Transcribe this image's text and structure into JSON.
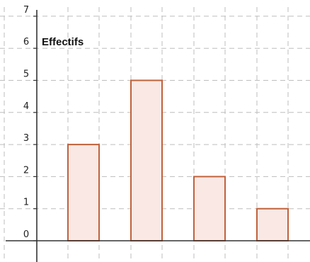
{
  "chart_data": {
    "type": "bar",
    "title": "Effectifs",
    "xlabel": "",
    "ylabel": "",
    "ylim": [
      0,
      7
    ],
    "yticks": [
      "0",
      "1",
      "2",
      "3",
      "4",
      "5",
      "6",
      "7"
    ],
    "grid": true,
    "values": [
      3,
      5,
      2,
      1
    ],
    "bar_fill": "#f9e8e4",
    "bar_stroke": "#c0623c"
  }
}
